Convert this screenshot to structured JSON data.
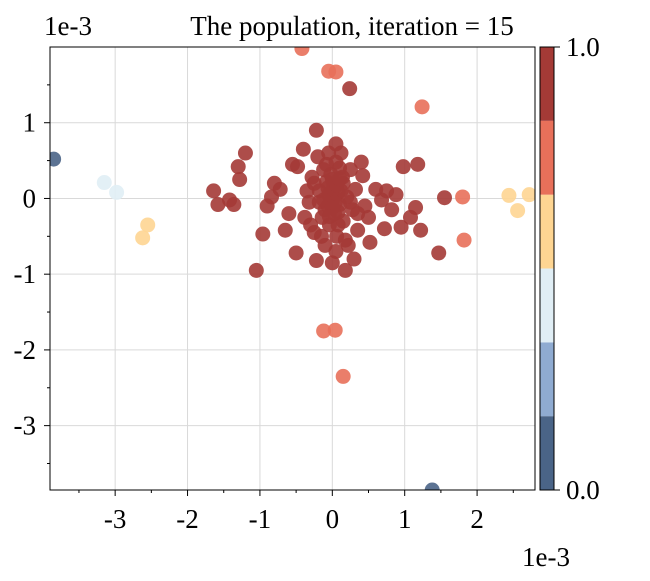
{
  "chart_data": {
    "type": "scatter",
    "title": "The population, iteration = 15",
    "x_offset_label": "1e-3",
    "y_offset_label": "1e-3",
    "xlim": [
      -3.9,
      2.8
    ],
    "ylim": [
      -3.85,
      2.0
    ],
    "x_ticks": [
      {
        "value": -3,
        "label": "-3"
      },
      {
        "value": -2,
        "label": "-2"
      },
      {
        "value": -1,
        "label": "-1"
      },
      {
        "value": 0,
        "label": "0"
      },
      {
        "value": 1,
        "label": "1"
      },
      {
        "value": 2,
        "label": "2"
      }
    ],
    "y_ticks": [
      {
        "value": 1,
        "label": "1"
      },
      {
        "value": 0,
        "label": "0"
      },
      {
        "value": -1,
        "label": "-1"
      },
      {
        "value": -2,
        "label": "-2"
      },
      {
        "value": -3,
        "label": "-3"
      }
    ],
    "grid": true,
    "colorbar": {
      "min_label": "0.0",
      "max_label": "1.0",
      "colors": [
        "#4a6487",
        "#8fabd1",
        "#e0eef5",
        "#fed592",
        "#e8705a",
        "#a43a36"
      ]
    },
    "points": [
      {
        "x": -3.85,
        "y": 0.52,
        "c": 0.05
      },
      {
        "x": -3.15,
        "y": 0.21,
        "c": 0.45
      },
      {
        "x": -2.98,
        "y": 0.08,
        "c": 0.45
      },
      {
        "x": -2.55,
        "y": -0.35,
        "c": 0.6
      },
      {
        "x": -2.62,
        "y": -0.52,
        "c": 0.6
      },
      {
        "x": 1.38,
        "y": -3.85,
        "c": 0.05
      },
      {
        "x": 2.44,
        "y": 0.04,
        "c": 0.6
      },
      {
        "x": 2.56,
        "y": -0.16,
        "c": 0.6
      },
      {
        "x": 2.72,
        "y": 0.05,
        "c": 0.6
      },
      {
        "x": -0.42,
        "y": 1.98,
        "c": 0.75
      },
      {
        "x": -0.05,
        "y": 1.68,
        "c": 0.75
      },
      {
        "x": 0.05,
        "y": 1.67,
        "c": 0.75
      },
      {
        "x": 1.24,
        "y": 1.21,
        "c": 0.75
      },
      {
        "x": 1.8,
        "y": 0.02,
        "c": 0.75
      },
      {
        "x": 1.82,
        "y": -0.55,
        "c": 0.75
      },
      {
        "x": -0.12,
        "y": -1.75,
        "c": 0.75
      },
      {
        "x": 0.04,
        "y": -1.74,
        "c": 0.75
      },
      {
        "x": 0.15,
        "y": -2.35,
        "c": 0.75
      },
      {
        "x": 0.24,
        "y": 1.45,
        "c": 0.9
      },
      {
        "x": -0.22,
        "y": 0.9,
        "c": 0.9
      },
      {
        "x": 0.05,
        "y": 0.72,
        "c": 0.9
      },
      {
        "x": 1.18,
        "y": 0.45,
        "c": 0.9
      },
      {
        "x": 1.55,
        "y": 0.01,
        "c": 0.9
      },
      {
        "x": 1.47,
        "y": -0.72,
        "c": 0.9
      },
      {
        "x": -1.3,
        "y": 0.42,
        "c": 0.9
      },
      {
        "x": -1.28,
        "y": 0.25,
        "c": 0.9
      },
      {
        "x": -1.2,
        "y": 0.6,
        "c": 0.9
      },
      {
        "x": -1.64,
        "y": 0.1,
        "c": 0.9
      },
      {
        "x": -1.58,
        "y": -0.08,
        "c": 0.9
      },
      {
        "x": -1.42,
        "y": -0.02,
        "c": 0.9
      },
      {
        "x": -1.36,
        "y": -0.08,
        "c": 0.9
      },
      {
        "x": -1.05,
        "y": -0.95,
        "c": 0.9
      },
      {
        "x": -0.96,
        "y": -0.47,
        "c": 0.9
      },
      {
        "x": -0.9,
        "y": -0.1,
        "c": 0.9
      },
      {
        "x": -0.84,
        "y": 0.02,
        "c": 0.9
      },
      {
        "x": -0.8,
        "y": 0.2,
        "c": 0.9
      },
      {
        "x": -0.72,
        "y": 0.12,
        "c": 0.9
      },
      {
        "x": -0.55,
        "y": 0.45,
        "c": 0.9
      },
      {
        "x": -0.48,
        "y": 0.42,
        "c": 0.9
      },
      {
        "x": -0.5,
        "y": -0.72,
        "c": 0.9
      },
      {
        "x": -0.4,
        "y": 0.65,
        "c": 0.9
      },
      {
        "x": -0.38,
        "y": -0.25,
        "c": 0.9
      },
      {
        "x": -0.32,
        "y": -0.05,
        "c": 0.9
      },
      {
        "x": -0.28,
        "y": 0.28,
        "c": 0.9
      },
      {
        "x": -0.25,
        "y": -0.45,
        "c": 0.9
      },
      {
        "x": -0.22,
        "y": -0.82,
        "c": 0.9
      },
      {
        "x": -0.2,
        "y": 0.55,
        "c": 0.9
      },
      {
        "x": -0.18,
        "y": 0.1,
        "c": 0.9
      },
      {
        "x": -0.14,
        "y": -0.25,
        "c": 0.9
      },
      {
        "x": -0.12,
        "y": 0.38,
        "c": 0.9
      },
      {
        "x": -0.1,
        "y": -0.62,
        "c": 0.9
      },
      {
        "x": -0.08,
        "y": 0.22,
        "c": 0.9
      },
      {
        "x": -0.06,
        "y": -0.1,
        "c": 0.9
      },
      {
        "x": -0.05,
        "y": 0.05,
        "c": 0.9
      },
      {
        "x": -0.04,
        "y": -0.35,
        "c": 0.9
      },
      {
        "x": -0.02,
        "y": 0.32,
        "c": 0.9
      },
      {
        "x": 0.0,
        "y": -0.02,
        "c": 0.9
      },
      {
        "x": 0.0,
        "y": -0.85,
        "c": 0.9
      },
      {
        "x": 0.02,
        "y": 0.15,
        "c": 0.9
      },
      {
        "x": 0.03,
        "y": -0.2,
        "c": 0.9
      },
      {
        "x": 0.05,
        "y": 0.48,
        "c": 0.9
      },
      {
        "x": 0.06,
        "y": -0.5,
        "c": 0.9
      },
      {
        "x": 0.08,
        "y": 0.08,
        "c": 0.9
      },
      {
        "x": 0.1,
        "y": -0.08,
        "c": 0.9
      },
      {
        "x": 0.12,
        "y": 0.6,
        "c": 0.9
      },
      {
        "x": 0.14,
        "y": 0.28,
        "c": 0.9
      },
      {
        "x": 0.15,
        "y": -0.3,
        "c": 0.9
      },
      {
        "x": 0.18,
        "y": -0.95,
        "c": 0.9
      },
      {
        "x": 0.2,
        "y": 0.02,
        "c": 0.9
      },
      {
        "x": 0.22,
        "y": -0.62,
        "c": 0.9
      },
      {
        "x": 0.25,
        "y": 0.38,
        "c": 0.9
      },
      {
        "x": 0.28,
        "y": -0.15,
        "c": 0.9
      },
      {
        "x": 0.32,
        "y": 0.12,
        "c": 0.9
      },
      {
        "x": 0.35,
        "y": -0.42,
        "c": 0.9
      },
      {
        "x": 0.4,
        "y": 0.48,
        "c": 0.9
      },
      {
        "x": 0.45,
        "y": -0.1,
        "c": 0.9
      },
      {
        "x": 0.5,
        "y": -0.25,
        "c": 0.9
      },
      {
        "x": 0.52,
        "y": -0.58,
        "c": 0.9
      },
      {
        "x": 0.6,
        "y": 0.12,
        "c": 0.9
      },
      {
        "x": 0.68,
        "y": -0.02,
        "c": 0.9
      },
      {
        "x": 0.72,
        "y": -0.4,
        "c": 0.9
      },
      {
        "x": 0.75,
        "y": 0.1,
        "c": 0.9
      },
      {
        "x": 0.82,
        "y": -0.15,
        "c": 0.9
      },
      {
        "x": 0.88,
        "y": 0.05,
        "c": 0.9
      },
      {
        "x": 0.95,
        "y": -0.38,
        "c": 0.9
      },
      {
        "x": 0.98,
        "y": 0.42,
        "c": 0.9
      },
      {
        "x": 1.08,
        "y": -0.25,
        "c": 0.9
      },
      {
        "x": 1.15,
        "y": -0.12,
        "c": 0.9
      },
      {
        "x": 1.22,
        "y": -0.42,
        "c": 0.9
      },
      {
        "x": -0.65,
        "y": -0.42,
        "c": 0.9
      },
      {
        "x": -0.6,
        "y": -0.2,
        "c": 0.9
      },
      {
        "x": 0.3,
        "y": -0.8,
        "c": 0.9
      },
      {
        "x": 0.42,
        "y": 0.3,
        "c": 0.9
      },
      {
        "x": -0.35,
        "y": 0.1,
        "c": 0.9
      },
      {
        "x": 0.1,
        "y": 0.4,
        "c": 0.9
      },
      {
        "x": -0.15,
        "y": -0.5,
        "c": 0.9
      },
      {
        "x": 0.05,
        "y": -0.7,
        "c": 0.9
      },
      {
        "x": 0.15,
        "y": 0.2,
        "c": 0.9
      },
      {
        "x": -0.05,
        "y": 0.6,
        "c": 0.9
      },
      {
        "x": 0.25,
        "y": -0.05,
        "c": 0.9
      },
      {
        "x": -0.25,
        "y": 0.2,
        "c": 0.9
      },
      {
        "x": 0.35,
        "y": -0.2,
        "c": 0.9
      },
      {
        "x": -0.1,
        "y": -0.15,
        "c": 0.9
      },
      {
        "x": 0.0,
        "y": 0.25,
        "c": 0.9
      },
      {
        "x": 0.08,
        "y": -0.35,
        "c": 0.9
      },
      {
        "x": -0.18,
        "y": -0.05,
        "c": 0.9
      },
      {
        "x": 0.12,
        "y": 0.1,
        "c": 0.9
      },
      {
        "x": -0.08,
        "y": 0.45,
        "c": 0.9
      },
      {
        "x": 0.18,
        "y": -0.55,
        "c": 0.9
      },
      {
        "x": -0.3,
        "y": -0.35,
        "c": 0.9
      },
      {
        "x": 0.02,
        "y": 0.02,
        "c": 0.95
      },
      {
        "x": -0.02,
        "y": 0.08,
        "c": 0.95
      },
      {
        "x": 0.04,
        "y": -0.06,
        "c": 0.95
      },
      {
        "x": -0.06,
        "y": 0.14,
        "c": 0.95
      },
      {
        "x": 0.06,
        "y": 0.18,
        "c": 0.95
      },
      {
        "x": -0.12,
        "y": -0.02,
        "c": 0.95
      },
      {
        "x": 0.1,
        "y": 0.26,
        "c": 0.95
      },
      {
        "x": 0.0,
        "y": -0.12,
        "c": 0.95
      },
      {
        "x": -0.04,
        "y": -0.24,
        "c": 0.95
      },
      {
        "x": 0.08,
        "y": -0.18,
        "c": 0.95
      }
    ]
  }
}
